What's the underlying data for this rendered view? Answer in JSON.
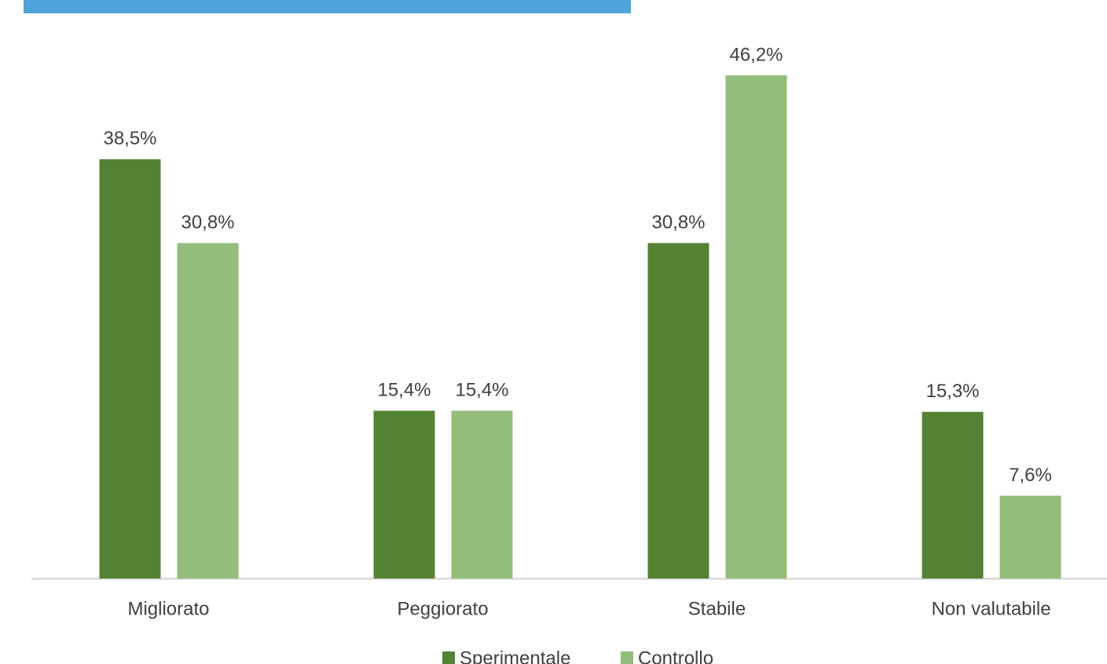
{
  "chart_data": {
    "type": "bar",
    "categories": [
      "Migliorato",
      "Peggiorato",
      "Stabile",
      "Non valutabile"
    ],
    "series": [
      {
        "name": "Sperimentale",
        "color": "#548235",
        "values": [
          38.5,
          15.4,
          30.8,
          15.3
        ],
        "value_labels": [
          "38,5%",
          "15,4%",
          "30,8%",
          "15,3%"
        ]
      },
      {
        "name": "Controllo",
        "color": "#93bd7a",
        "values": [
          30.8,
          15.4,
          46.2,
          7.6
        ],
        "value_labels": [
          "30,8%",
          "15,4%",
          "46,2%",
          "7,6%"
        ]
      }
    ],
    "legend": "bottom"
  }
}
